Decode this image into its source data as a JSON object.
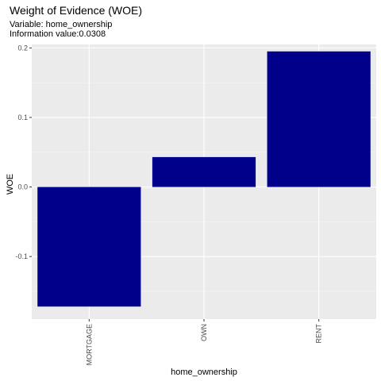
{
  "chart_data": {
    "type": "bar",
    "title": "Weight of Evidence (WOE)",
    "subtitle_lines": [
      "Variable: home_ownership",
      "Information value:0.0308"
    ],
    "xlabel": "home_ownership",
    "ylabel": "WOE",
    "categories": [
      "MORTGAGE",
      "OWN",
      "RENT"
    ],
    "values": [
      -0.172,
      0.043,
      0.195
    ],
    "ylim": [
      -0.19,
      0.205
    ],
    "yticks": [
      -0.1,
      0.0,
      0.1,
      0.2
    ],
    "ytick_labels": [
      "-0.1",
      "0.0",
      "0.1",
      "0.2"
    ],
    "grid": true,
    "legend": "none",
    "colors": {
      "bar": "#00008b",
      "panel": "#ebebeb",
      "grid_major": "#ffffff",
      "grid_minor": "#f5f5f5"
    }
  }
}
